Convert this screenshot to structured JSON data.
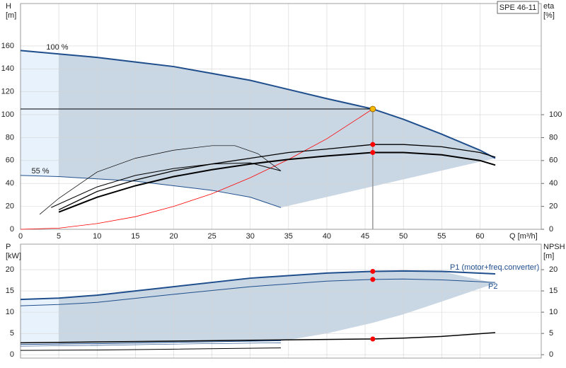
{
  "chart_data": [
    {
      "type": "line",
      "title": "SPE 46-11",
      "xlabel": "Q [m³/h]",
      "ylabel": [
        "H",
        "[m]"
      ],
      "y2label": [
        "eta",
        "[%]"
      ],
      "xlim": [
        0,
        68
      ],
      "xticks": [
        0,
        5,
        10,
        15,
        20,
        25,
        30,
        35,
        40,
        45,
        50,
        55,
        60
      ],
      "xtick_labels": true,
      "ylim": [
        0,
        197
      ],
      "yticks": [
        0,
        20,
        40,
        60,
        80,
        100,
        120,
        140,
        160
      ],
      "y2lim": [
        0,
        197
      ],
      "y2ticks": [
        0,
        20,
        40,
        60,
        80,
        100
      ],
      "grid": true,
      "annotations": [
        "100 %",
        "55 %"
      ],
      "series": [
        {
          "color": "#1f4e8c",
          "width": 2,
          "x": [
            0,
            5,
            10,
            15,
            20,
            25,
            30,
            35,
            40,
            46,
            50,
            55,
            60,
            62
          ],
          "values": [
            156,
            153,
            150,
            146,
            142,
            136,
            130,
            122,
            114,
            105,
            96,
            83,
            69,
            62
          ]
        },
        {
          "color": "#1f4e8c",
          "width": 1,
          "x": [
            0,
            5,
            10,
            15,
            20,
            25,
            30,
            34
          ],
          "values": [
            47,
            46,
            44,
            42,
            38,
            34,
            28,
            19
          ]
        },
        {
          "color": "#ff0000",
          "width": 0.8,
          "x": [
            0,
            5,
            10,
            15,
            20,
            25,
            30,
            35,
            40,
            46
          ],
          "values": [
            0,
            1,
            5,
            11,
            20,
            31,
            45,
            61,
            79,
            105
          ]
        },
        {
          "color": "#000000",
          "width": 2,
          "axis": "y2",
          "x": [
            5,
            10,
            15,
            20,
            25,
            30,
            35,
            40,
            46,
            50,
            55,
            60,
            62
          ],
          "values": [
            15,
            28,
            38,
            46,
            52,
            57,
            61,
            64,
            67,
            67,
            65,
            60,
            56
          ]
        },
        {
          "color": "#000000",
          "width": 1.3,
          "axis": "y2",
          "x": [
            5,
            10,
            15,
            20,
            25,
            30,
            35,
            40,
            46,
            50,
            55,
            60,
            62
          ],
          "values": [
            17,
            33,
            43,
            51,
            57,
            62,
            67,
            70,
            74,
            74,
            72,
            67,
            63
          ]
        },
        {
          "color": "#000000",
          "width": 0.7,
          "axis": "y2",
          "x": [
            2.5,
            5,
            10,
            15,
            20,
            25,
            28,
            31,
            34
          ],
          "values": [
            13,
            27,
            50,
            62,
            69,
            73,
            73,
            66,
            51
          ]
        },
        {
          "color": "#000000",
          "width": 1,
          "axis": "y2",
          "x": [
            4,
            10,
            15,
            20,
            25,
            30,
            34
          ],
          "values": [
            19,
            37,
            47,
            53,
            57,
            58,
            51
          ]
        }
      ],
      "regions": [
        {
          "color": "#c9d6e3",
          "x": [
            5,
            10,
            15,
            20,
            25,
            30,
            35,
            40,
            46,
            50,
            55,
            60,
            62,
            34,
            30,
            25,
            20,
            15,
            10,
            5
          ],
          "values": [
            153,
            150,
            146,
            142,
            136,
            130,
            122,
            114,
            105,
            96,
            83,
            69,
            62,
            19,
            28,
            34,
            38,
            42,
            44,
            46
          ]
        },
        {
          "color": "#e8f2fc",
          "x": [
            0,
            5,
            5,
            0
          ],
          "values": [
            156,
            153,
            46,
            47
          ]
        }
      ],
      "markers": [
        {
          "x": 46,
          "value": 105,
          "color": "#f5b800",
          "guides": true
        },
        {
          "x": 46,
          "value": 74,
          "color": "#ff0000",
          "axis": "y2"
        },
        {
          "x": 46,
          "value": 67,
          "color": "#ff0000",
          "axis": "y2"
        }
      ]
    },
    {
      "type": "line",
      "ylabel": [
        "P",
        "[kW]"
      ],
      "y2label": [
        "NPSH",
        "[m]"
      ],
      "xlim": [
        0,
        68
      ],
      "xticks": [
        0,
        5,
        10,
        15,
        20,
        25,
        30,
        35,
        40,
        45,
        50,
        55,
        60
      ],
      "xtick_labels": false,
      "ylim": [
        -0.8,
        26
      ],
      "yticks": [
        0,
        5,
        10,
        15,
        20
      ],
      "y2lim": [
        -0.8,
        26
      ],
      "y2ticks": [
        0,
        5,
        10,
        15,
        20
      ],
      "grid": true,
      "series": [
        {
          "name": "P1 (motor+freq.converter)",
          "color": "#1f4e8c",
          "width": 2,
          "x": [
            0,
            5,
            10,
            20,
            30,
            40,
            46,
            50,
            55,
            62
          ],
          "values": [
            13,
            13.3,
            14,
            16,
            18,
            19.2,
            19.6,
            19.7,
            19.6,
            19
          ]
        },
        {
          "name": "P2",
          "color": "#1f4e8c",
          "width": 1,
          "x": [
            0,
            5,
            10,
            20,
            30,
            40,
            46,
            50,
            55,
            62
          ],
          "values": [
            11.5,
            11.8,
            12.3,
            14.2,
            16,
            17.3,
            17.7,
            17.8,
            17.6,
            17
          ]
        },
        {
          "color": "#000000",
          "width": 1.5,
          "axis": "y2",
          "x": [
            0,
            10,
            20,
            30,
            40,
            46,
            50,
            55,
            62
          ],
          "values": [
            2.8,
            3,
            3.2,
            3.4,
            3.6,
            3.7,
            3.9,
            4.3,
            5.2
          ]
        },
        {
          "color": "#1f4e8c",
          "width": 1,
          "x": [
            0,
            10,
            20,
            34
          ],
          "values": [
            2.4,
            2.6,
            2.9,
            3.3
          ]
        },
        {
          "color": "#1f4e8c",
          "width": 0.7,
          "x": [
            0,
            10,
            20,
            34
          ],
          "values": [
            2,
            2.2,
            2.5,
            2.8
          ]
        },
        {
          "color": "#000000",
          "width": 1,
          "axis": "y2",
          "x": [
            0,
            10,
            20,
            34
          ],
          "values": [
            1,
            1.1,
            1.3,
            1.6
          ]
        }
      ],
      "regions": [
        {
          "color": "#c9d6e3",
          "x": [
            5,
            10,
            20,
            30,
            40,
            46,
            50,
            55,
            62,
            55,
            50,
            46,
            40,
            34,
            20,
            10,
            5
          ],
          "values": [
            13.3,
            14,
            16,
            18,
            19.2,
            19.6,
            19.7,
            19.6,
            16.8,
            12.5,
            9.5,
            7.5,
            5,
            3.2,
            2.9,
            2.6,
            2.4
          ]
        },
        {
          "color": "#e8f2fc",
          "x": [
            0,
            5,
            5,
            0
          ],
          "values": [
            13,
            13.3,
            2.4,
            2.4
          ]
        }
      ],
      "markers": [
        {
          "x": 46,
          "value": 19.6,
          "color": "#ff0000"
        },
        {
          "x": 46,
          "value": 17.7,
          "color": "#ff0000"
        },
        {
          "x": 46,
          "value": 3.7,
          "color": "#ff0000",
          "axis": "y2"
        }
      ]
    }
  ]
}
